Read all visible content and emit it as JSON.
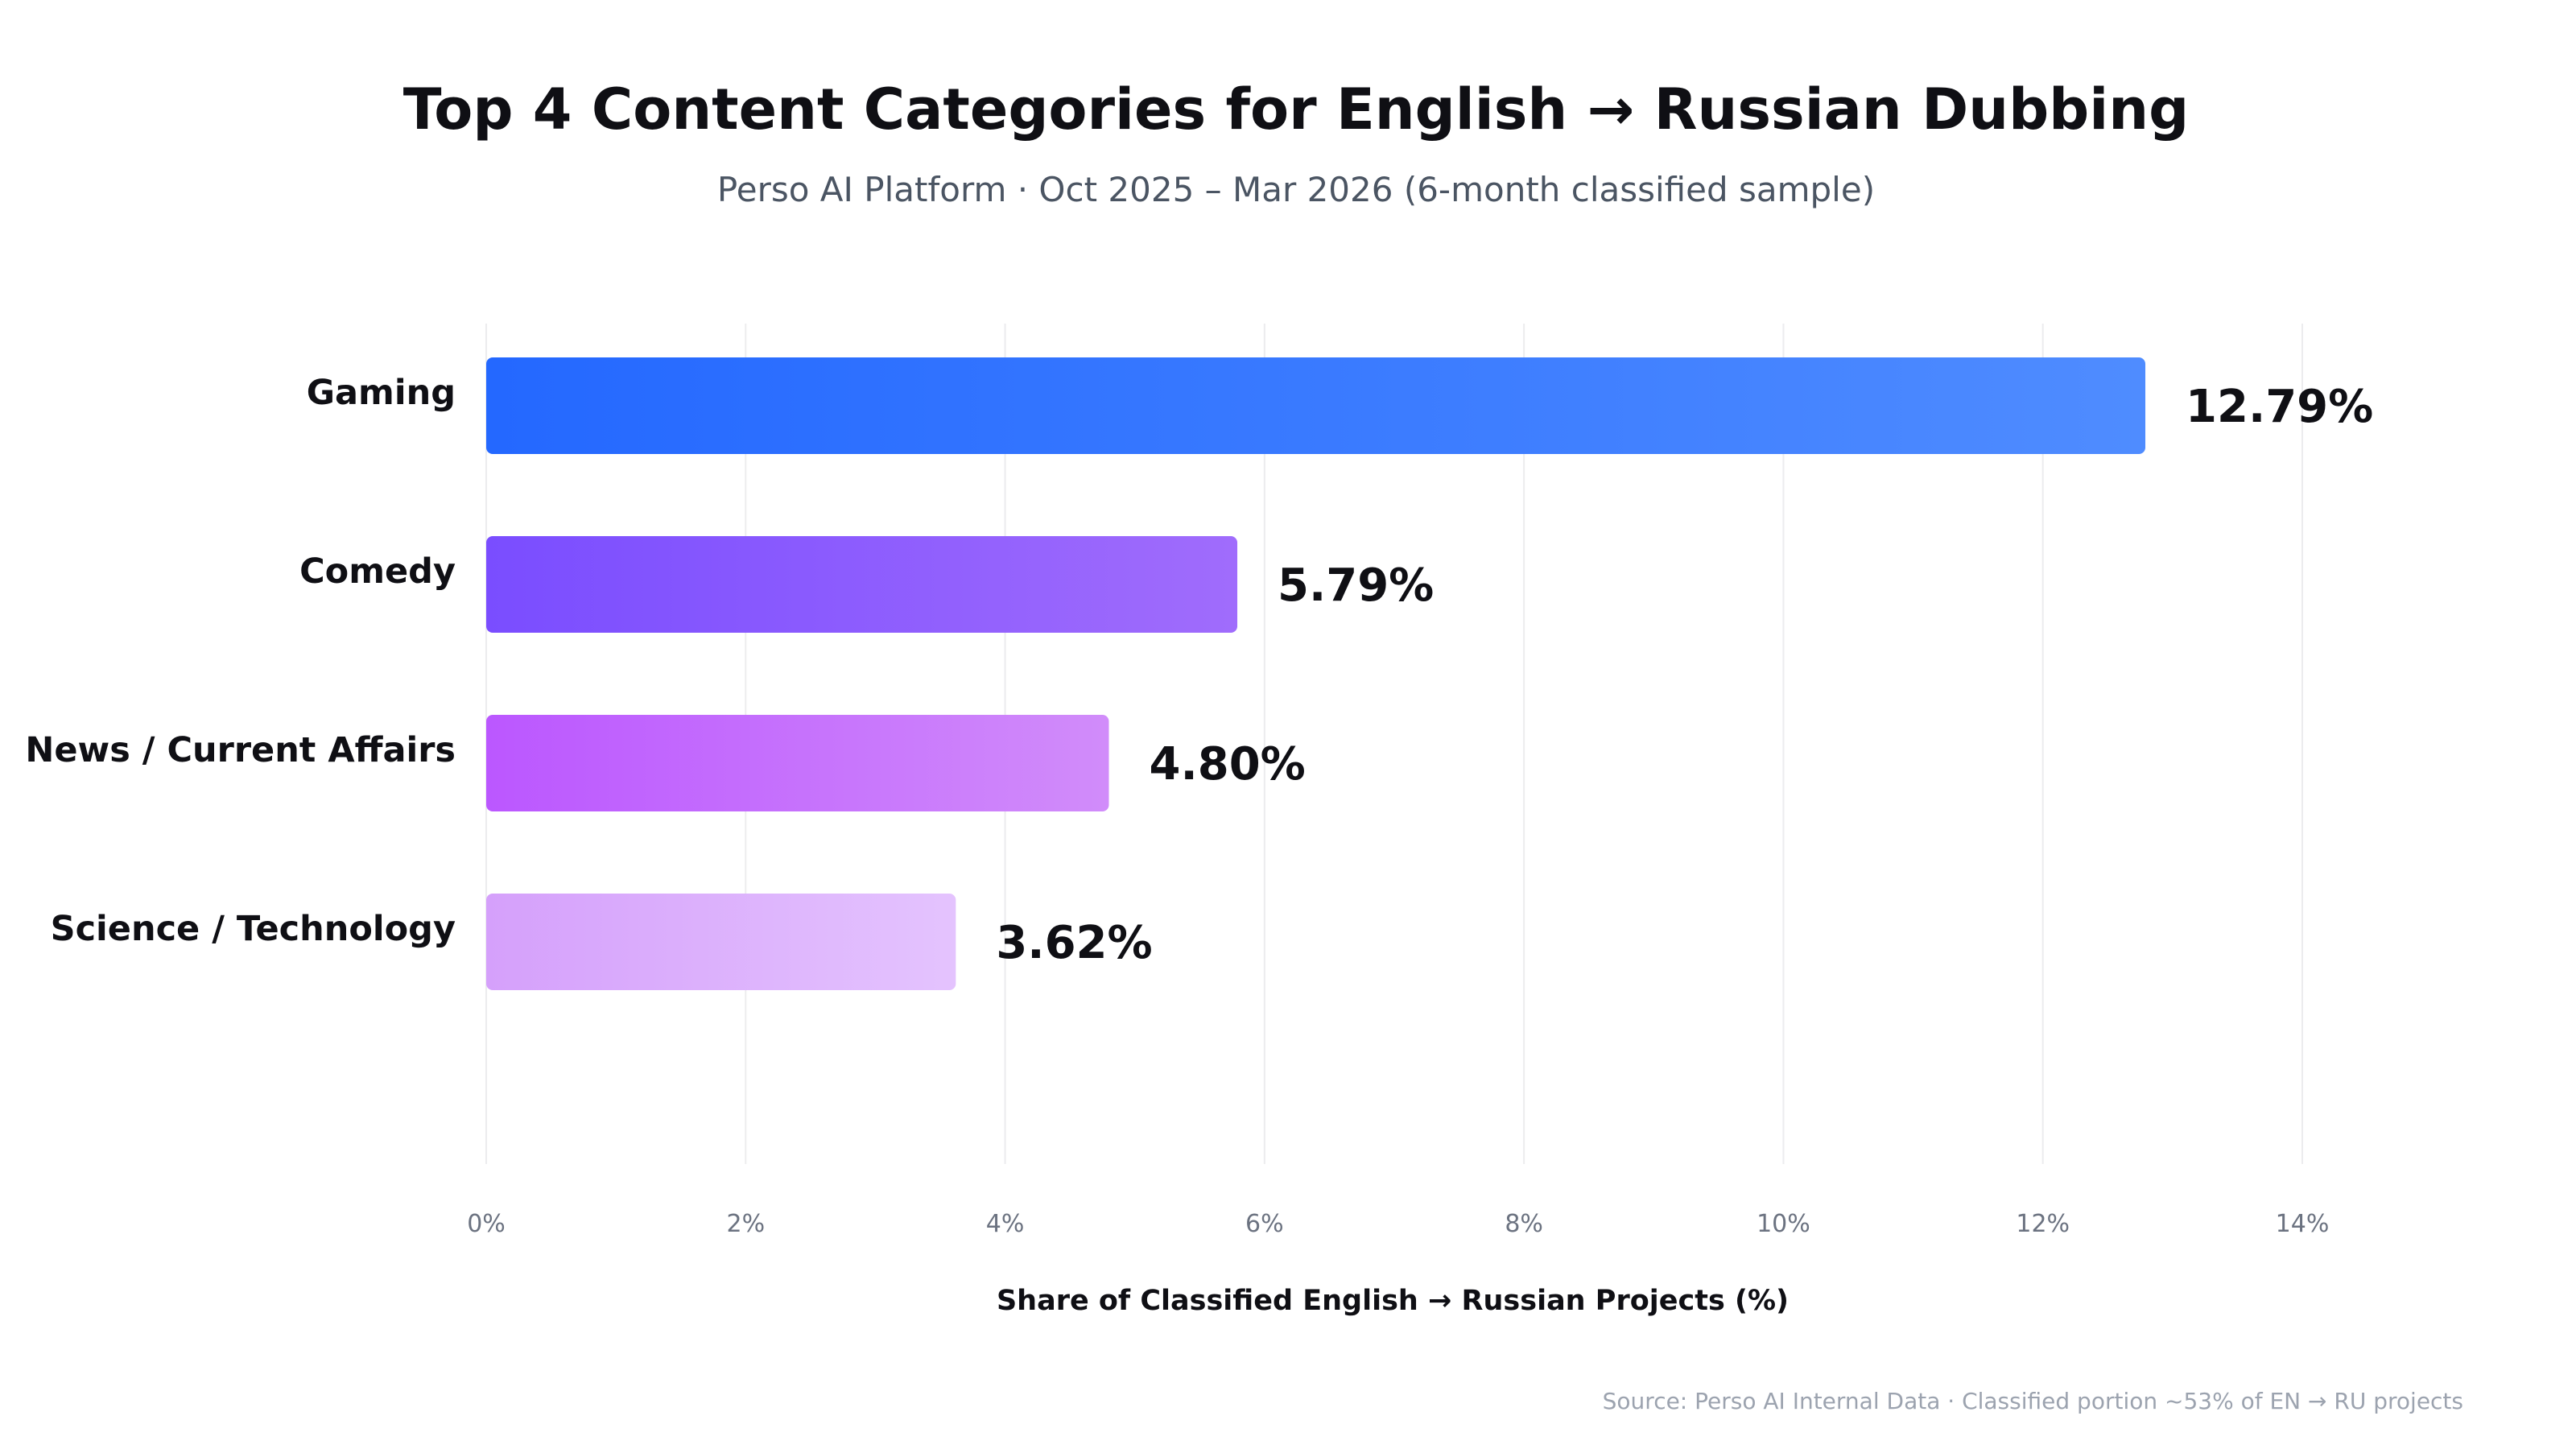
{
  "chart_data": {
    "type": "bar",
    "orientation": "horizontal",
    "title": "Top 4 Content Categories for English → Russian Dubbing",
    "subtitle": "Perso AI Platform · Oct 2025 – Mar 2026 (6-month classified sample)",
    "xlabel": "Share of Classified English → Russian Projects (%)",
    "ylabel": "",
    "xlim": [
      0,
      14
    ],
    "xticks": [
      0,
      2,
      4,
      6,
      8,
      10,
      12,
      14
    ],
    "xtick_labels": [
      "0%",
      "2%",
      "4%",
      "6%",
      "8%",
      "10%",
      "12%",
      "14%"
    ],
    "grid": "vertical",
    "categories": [
      "Gaming",
      "Comedy",
      "News / Current Affairs",
      "Science / Technology"
    ],
    "values": [
      12.79,
      5.79,
      4.8,
      3.62
    ],
    "value_labels": [
      "12.79%",
      "5.79%",
      "4.80%",
      "3.62%"
    ],
    "bar_colors": [
      [
        "#2468ff",
        "#4f8cff"
      ],
      [
        "#7a4dff",
        "#a06cfc"
      ],
      [
        "#bb57ff",
        "#d18cfa"
      ],
      [
        "#d5a0fb",
        "#e4c3fe"
      ]
    ],
    "source": "Source: Perso AI Internal Data · Classified portion ~53% of EN → RU projects"
  }
}
